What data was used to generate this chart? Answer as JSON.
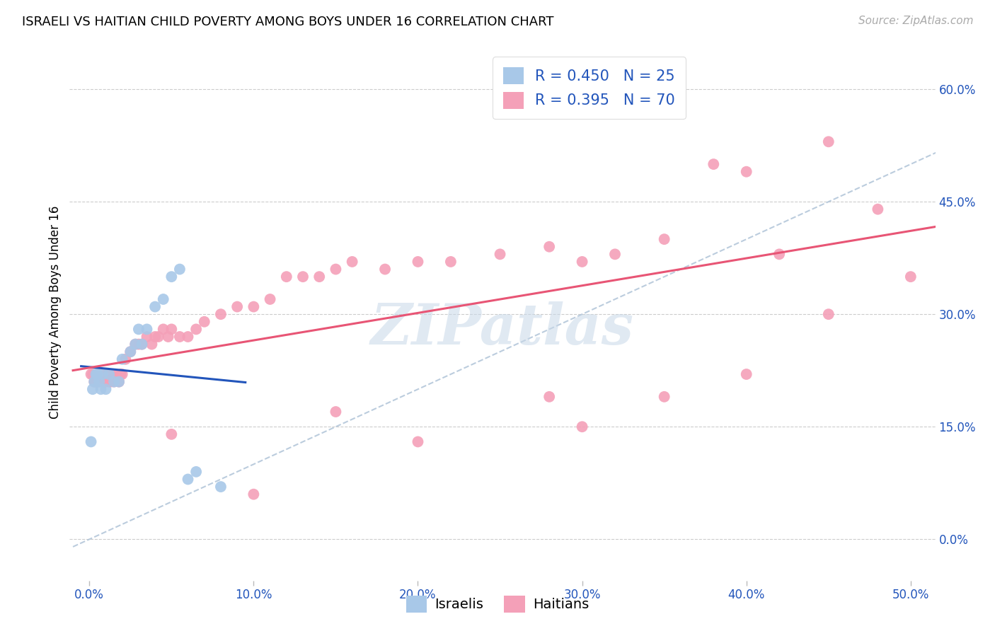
{
  "title": "ISRAELI VS HAITIAN CHILD POVERTY AMONG BOYS UNDER 16 CORRELATION CHART",
  "source": "Source: ZipAtlas.com",
  "ylabel": "Child Poverty Among Boys Under 16",
  "israelis_R": 0.45,
  "israelis_N": 25,
  "haitians_R": 0.395,
  "haitians_N": 70,
  "israeli_color": "#a8c8e8",
  "haitian_color": "#f4a0b8",
  "israeli_line_color": "#2255bb",
  "haitian_line_color": "#e85575",
  "diagonal_color": "#b0c4d8",
  "legend_text_color": "#2255bb",
  "isr_x": [
    0.001,
    0.002,
    0.003,
    0.004,
    0.005,
    0.006,
    0.007,
    0.008,
    0.01,
    0.012,
    0.015,
    0.018,
    0.02,
    0.025,
    0.028,
    0.03,
    0.032,
    0.035,
    0.04,
    0.045,
    0.05,
    0.055,
    0.06,
    0.065,
    0.08
  ],
  "isr_y": [
    0.13,
    0.2,
    0.21,
    0.22,
    0.22,
    0.21,
    0.2,
    0.22,
    0.2,
    0.22,
    0.21,
    0.21,
    0.24,
    0.25,
    0.26,
    0.28,
    0.26,
    0.28,
    0.31,
    0.32,
    0.35,
    0.36,
    0.08,
    0.09,
    0.07
  ],
  "hat_x": [
    0.001,
    0.002,
    0.003,
    0.004,
    0.005,
    0.005,
    0.006,
    0.006,
    0.007,
    0.008,
    0.009,
    0.01,
    0.01,
    0.011,
    0.012,
    0.013,
    0.014,
    0.015,
    0.016,
    0.018,
    0.019,
    0.02,
    0.022,
    0.025,
    0.028,
    0.03,
    0.032,
    0.035,
    0.038,
    0.04,
    0.042,
    0.045,
    0.048,
    0.05,
    0.055,
    0.06,
    0.065,
    0.07,
    0.08,
    0.09,
    0.1,
    0.11,
    0.12,
    0.13,
    0.14,
    0.15,
    0.16,
    0.18,
    0.2,
    0.22,
    0.25,
    0.28,
    0.3,
    0.32,
    0.35,
    0.38,
    0.4,
    0.42,
    0.45,
    0.48,
    0.5,
    0.35,
    0.4,
    0.45,
    0.28,
    0.3,
    0.2,
    0.15,
    0.1,
    0.05
  ],
  "hat_y": [
    0.22,
    0.22,
    0.21,
    0.21,
    0.22,
    0.21,
    0.22,
    0.21,
    0.22,
    0.21,
    0.21,
    0.21,
    0.22,
    0.22,
    0.21,
    0.21,
    0.22,
    0.21,
    0.22,
    0.21,
    0.22,
    0.22,
    0.24,
    0.25,
    0.26,
    0.26,
    0.26,
    0.27,
    0.26,
    0.27,
    0.27,
    0.28,
    0.27,
    0.28,
    0.27,
    0.27,
    0.28,
    0.29,
    0.3,
    0.31,
    0.31,
    0.32,
    0.35,
    0.35,
    0.35,
    0.36,
    0.37,
    0.36,
    0.37,
    0.37,
    0.38,
    0.39,
    0.37,
    0.38,
    0.4,
    0.5,
    0.49,
    0.38,
    0.53,
    0.44,
    0.35,
    0.19,
    0.22,
    0.3,
    0.19,
    0.15,
    0.13,
    0.17,
    0.06,
    0.14
  ],
  "xlim": [
    -0.012,
    0.515
  ],
  "ylim": [
    -0.055,
    0.66
  ],
  "x_ticks": [
    0.0,
    0.1,
    0.2,
    0.3,
    0.4,
    0.5
  ],
  "x_tick_labels": [
    "0.0%",
    "10.0%",
    "20.0%",
    "30.0%",
    "40.0%",
    "50.0%"
  ],
  "y_ticks": [
    0.0,
    0.15,
    0.3,
    0.45,
    0.6
  ],
  "y_tick_labels": [
    "0.0%",
    "15.0%",
    "30.0%",
    "45.0%",
    "60.0%"
  ]
}
